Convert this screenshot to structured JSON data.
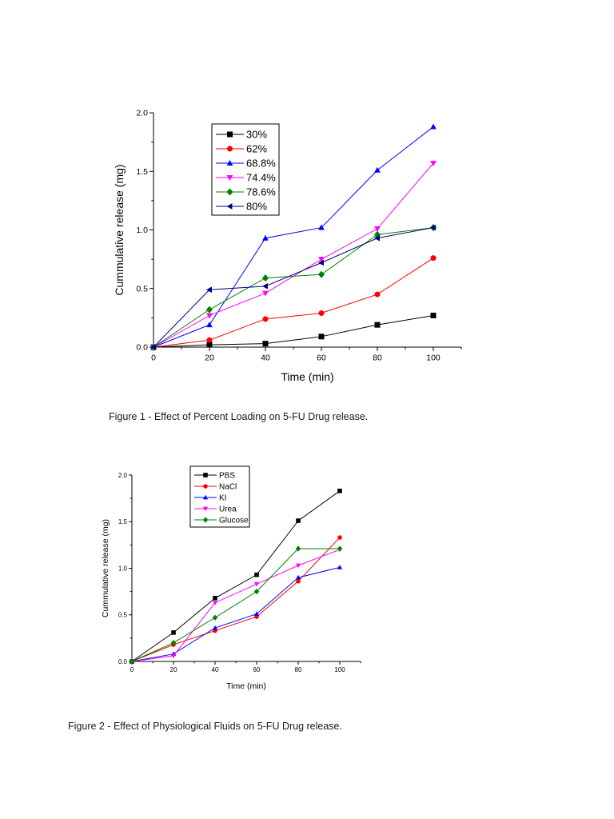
{
  "chart_data": [
    {
      "type": "line",
      "title": "",
      "xlabel": "Time (min)",
      "ylabel": "Cummulative release (mg)",
      "xlim": [
        0,
        110
      ],
      "ylim": [
        0,
        2.0
      ],
      "x_ticks": [
        "0",
        "20",
        "40",
        "60",
        "80",
        "100"
      ],
      "y_ticks": [
        "0.0",
        "0.5",
        "1.0",
        "1.5",
        "2.0"
      ],
      "grid": false,
      "legend_position": "top-left",
      "x": [
        0,
        20,
        40,
        60,
        80,
        100
      ],
      "series": [
        {
          "name": "30%",
          "color": "#000000",
          "marker": "square",
          "values": [
            0,
            0.02,
            0.03,
            0.09,
            0.19,
            0.27
          ]
        },
        {
          "name": "62%",
          "color": "#ff0000",
          "marker": "circle",
          "values": [
            0,
            0.06,
            0.24,
            0.29,
            0.45,
            0.76
          ]
        },
        {
          "name": "68.8%",
          "color": "#0000ff",
          "marker": "triangle-up",
          "values": [
            0,
            0.19,
            0.93,
            1.02,
            1.51,
            1.88
          ]
        },
        {
          "name": "74.4%",
          "color": "#ff00ff",
          "marker": "triangle-down",
          "values": [
            0,
            0.27,
            0.46,
            0.75,
            1.01,
            1.57
          ]
        },
        {
          "name": "78.6%",
          "color": "#008000",
          "marker": "diamond",
          "values": [
            0,
            0.32,
            0.59,
            0.62,
            0.96,
            1.02
          ]
        },
        {
          "name": "80%",
          "color": "#000080",
          "marker": "triangle-left",
          "values": [
            0,
            0.49,
            0.52,
            0.72,
            0.93,
            1.02
          ]
        }
      ]
    },
    {
      "type": "line",
      "title": "",
      "xlabel": "Time (min)",
      "ylabel": "Cummulative release (mg)",
      "xlim": [
        0,
        110
      ],
      "ylim": [
        0,
        2.0
      ],
      "x_ticks": [
        "0",
        "20",
        "40",
        "60",
        "80",
        "100"
      ],
      "y_ticks": [
        "0.0",
        "0.5",
        "1.0",
        "1.5",
        "2.0"
      ],
      "grid": false,
      "legend_position": "top-center",
      "x": [
        0,
        20,
        40,
        60,
        80,
        100
      ],
      "series": [
        {
          "name": "PBS",
          "color": "#000000",
          "marker": "square",
          "values": [
            0,
            0.31,
            0.68,
            0.93,
            1.51,
            1.83
          ]
        },
        {
          "name": "NaCl",
          "color": "#ff0000",
          "marker": "circle",
          "values": [
            0,
            0.18,
            0.33,
            0.48,
            0.86,
            1.33
          ]
        },
        {
          "name": "KI",
          "color": "#0000ff",
          "marker": "triangle-up",
          "values": [
            0,
            0.08,
            0.36,
            0.51,
            0.9,
            1.01
          ]
        },
        {
          "name": "Urea",
          "color": "#ff00ff",
          "marker": "triangle-down",
          "values": [
            0,
            0.06,
            0.63,
            0.83,
            1.03,
            1.2
          ]
        },
        {
          "name": "Glucose",
          "color": "#008000",
          "marker": "diamond",
          "values": [
            0,
            0.2,
            0.47,
            0.75,
            1.21,
            1.21
          ]
        }
      ]
    }
  ],
  "captions": {
    "figure1": "Figure 1 - Effect of Percent Loading on 5-FU Drug release.",
    "figure2": "Figure 2 - Effect of Physiological Fluids on 5-FU Drug release."
  }
}
